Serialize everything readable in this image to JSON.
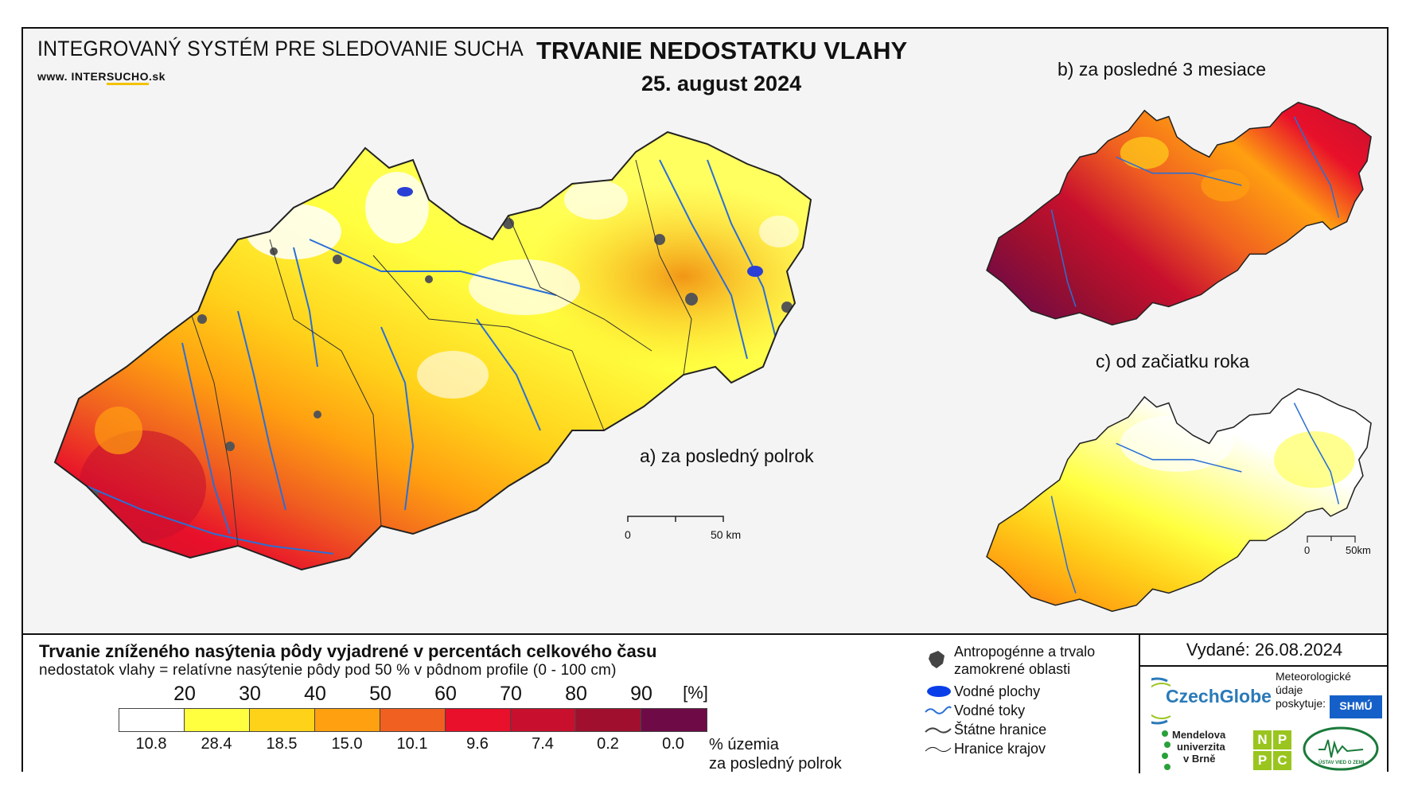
{
  "header": {
    "system_title": "INTEGROVANÝ SYSTÉM PRE SLEDOVANIE SUCHA",
    "website_prefix": "www.",
    "website_a": "INTER",
    "website_b": "SUCHO",
    "website_c": ".sk",
    "main_title": "TRVANIE NEDOSTATKU VLAHY",
    "date": "25. august 2024"
  },
  "maps": {
    "a_label": "a) za posledný polrok",
    "b_label": "b) za posledné 3 mesiace",
    "c_label": "c) od začiatku roka",
    "scale_main_zero": "0",
    "scale_main_end": "50 km",
    "scale_small_zero": "0",
    "scale_small_end": "50km"
  },
  "legend": {
    "title": "Trvanie zníženého nasýtenia pôdy vyjadrené v percentách celkového času",
    "subtitle": "nedostatok vlahy = relatívne nasýtenie pôdy pod 50 % v pôdnom profile (0 - 100 cm)",
    "thresholds": [
      "20",
      "30",
      "40",
      "50",
      "60",
      "70",
      "80",
      "90"
    ],
    "unit": "[%]",
    "classes": [
      {
        "color": "#ffffff",
        "pct": "10.8"
      },
      {
        "color": "#ffff40",
        "pct": "28.4"
      },
      {
        "color": "#ffd21a",
        "pct": "18.5"
      },
      {
        "color": "#ffa010",
        "pct": "15.0"
      },
      {
        "color": "#f06020",
        "pct": "10.1"
      },
      {
        "color": "#e8102a",
        "pct": "9.6"
      },
      {
        "color": "#c8102e",
        "pct": "7.4"
      },
      {
        "color": "#a0102e",
        "pct": "0.2"
      },
      {
        "color": "#6e0a46",
        "pct": "0.0"
      }
    ],
    "pct_label_1": "% územia",
    "pct_label_2": "za posledný polrok"
  },
  "symbols": {
    "anthro_1": "Antropogénne a trvalo",
    "anthro_2": "zamokrené oblasti",
    "water_bodies": "Vodné plochy",
    "rivers": "Vodné toky",
    "state_border": "Štátne hranice",
    "region_border": "Hranice krajov"
  },
  "issued": {
    "text": "Vydané: 26.08.2024",
    "czechglobe": "CzechGlobe",
    "meteo_1": "Meteorologické",
    "meteo_2": "údaje",
    "meteo_3": "poskytuje:",
    "shmu": "SHMÚ",
    "mendel_1": "Mendelova",
    "mendel_2": "univerzita",
    "mendel_3": "v Brně",
    "nppc": [
      "N",
      "P",
      "P",
      "C"
    ],
    "uvz": "ÚSTAV VIED O ZEMI"
  },
  "colors": {
    "river": "#2a6fd6",
    "border": "#222222",
    "urban": "#555555"
  }
}
